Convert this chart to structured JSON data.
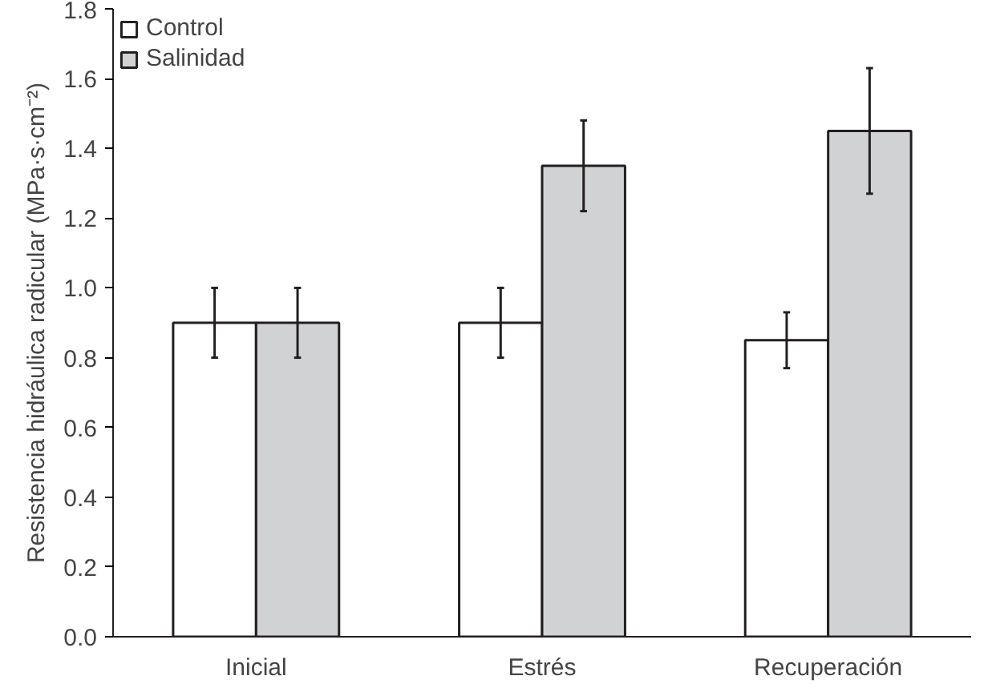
{
  "chart_data": {
    "type": "bar",
    "ylabel": "Resistencia hidráulica radicular (MPa·s·cm⁻²)",
    "categories": [
      "Inicial",
      "Estrés",
      "Recuperación"
    ],
    "series": [
      {
        "name": "Control",
        "color": "#ffffff",
        "values": [
          0.9,
          0.9,
          0.85
        ],
        "errors": [
          0.1,
          0.1,
          0.08
        ]
      },
      {
        "name": "Salinidad",
        "color": "#d1d2d4",
        "values": [
          0.9,
          1.35,
          1.45
        ],
        "errors": [
          0.1,
          0.13,
          0.18
        ]
      }
    ],
    "ylim": [
      0,
      1.8
    ],
    "yticks": [
      {
        "value": 0,
        "label": "0.0"
      },
      {
        "value": 0.2,
        "label": "0.2"
      },
      {
        "value": 0.4,
        "label": "0.4"
      },
      {
        "value": 0.6,
        "label": "0.6"
      },
      {
        "value": 0.8,
        "label": "0.8"
      },
      {
        "value": 1.0,
        "label": "1.0"
      },
      {
        "value": 1.2,
        "label": "1.2"
      },
      {
        "value": 1.4,
        "label": "1.4"
      },
      {
        "value": 1.6,
        "label": "1.6"
      },
      {
        "value": 1.8,
        "label": "1.8"
      }
    ],
    "grid": false,
    "legend": "top left"
  }
}
